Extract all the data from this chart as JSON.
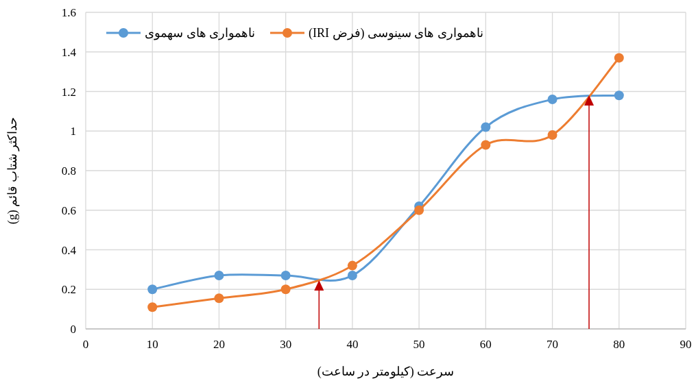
{
  "chart_data": {
    "type": "line",
    "xlabel": "سرعت (کیلومتر در ساعت)",
    "ylabel": "حداکثر شتاب قائم (g)",
    "x": [
      10,
      20,
      30,
      40,
      50,
      60,
      70,
      80
    ],
    "series": [
      {
        "name": "ناهمواری های سهموی",
        "color": "#5b9bd5",
        "values": [
          0.2,
          0.27,
          0.27,
          0.27,
          0.62,
          1.02,
          1.16,
          1.18
        ]
      },
      {
        "name": "ناهمواری های سینوسی (فرض IRI)",
        "color": "#ed7d31",
        "values": [
          0.11,
          0.155,
          0.2,
          0.32,
          0.6,
          0.93,
          0.98,
          1.37
        ]
      }
    ],
    "xlim": [
      0,
      90
    ],
    "xticks": [
      0,
      10,
      20,
      30,
      40,
      50,
      60,
      70,
      80,
      90
    ],
    "ylim": [
      0,
      1.6
    ],
    "yticks": [
      0,
      0.2,
      0.4,
      0.6,
      0.8,
      1,
      1.2,
      1.4,
      1.6
    ],
    "ref_lines": [
      {
        "axis": "x",
        "value": 35,
        "color": "#c00000"
      },
      {
        "axis": "x",
        "value": 75.5,
        "color": "#c00000"
      }
    ],
    "grid": true,
    "legend": "top left",
    "marker": "circle",
    "line_style": "solid"
  }
}
